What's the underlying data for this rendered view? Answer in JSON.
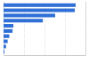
{
  "chart_data": {
    "type": "bar",
    "orientation": "horizontal",
    "categories": [
      null,
      null,
      null,
      null,
      null,
      null,
      null,
      null,
      null,
      null
    ],
    "values": [
      88,
      87,
      63,
      48,
      12,
      11,
      7,
      5,
      3,
      1
    ],
    "color": "#2f6fd6",
    "xlim": [
      0,
      100
    ],
    "xticks": [
      0,
      25,
      50,
      75,
      100
    ],
    "grid": true,
    "tick_labels": false
  }
}
